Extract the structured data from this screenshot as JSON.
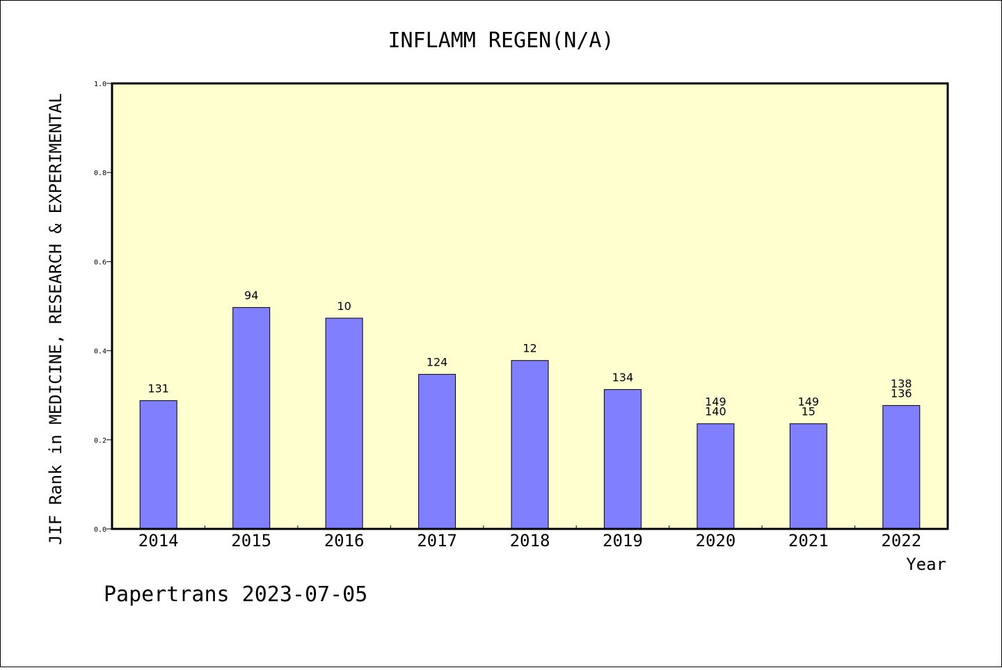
{
  "chart_data": {
    "type": "bar",
    "title": "INFLAMM REGEN(N/A)",
    "ylabel": "JIF Rank in MEDICINE, RESEARCH & EXPERIMENTAL",
    "xlabel": "Year",
    "ylim": [
      0,
      1.0
    ],
    "yticks": [
      "0.0",
      "0.2",
      "0.4",
      "0.6",
      "0.8",
      "1.0"
    ],
    "categories": [
      "2014",
      "2015",
      "2016",
      "2017",
      "2018",
      "2019",
      "2020",
      "2021",
      "2022"
    ],
    "values": [
      0.288,
      0.497,
      0.473,
      0.347,
      0.378,
      0.313,
      0.236,
      0.236,
      0.277
    ],
    "bar_labels": [
      [
        "131"
      ],
      [
        "94"
      ],
      [
        "10"
      ],
      [
        "124"
      ],
      [
        "12"
      ],
      [
        "134"
      ],
      [
        "149",
        "140"
      ],
      [
        "149",
        "15"
      ],
      [
        "138",
        "136"
      ]
    ],
    "grid": false,
    "colors": {
      "bar": "#8080ff",
      "plot_bg": "#ffffd0",
      "border": "#000000"
    }
  },
  "footer": {
    "text": "Papertrans 2023-07-05"
  }
}
